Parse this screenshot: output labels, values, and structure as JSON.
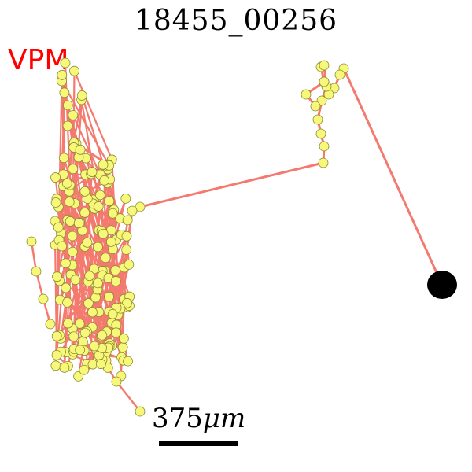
{
  "title": "18455_00256",
  "region_label": "VPM",
  "scale_bar": {
    "value": "375",
    "unit": "μm"
  },
  "colors": {
    "trace": "#f47a6f",
    "node_fill": "#f7f77a",
    "node_stroke": "#8a8a30",
    "soma": "#000000",
    "region_label": "#ff0000"
  }
}
